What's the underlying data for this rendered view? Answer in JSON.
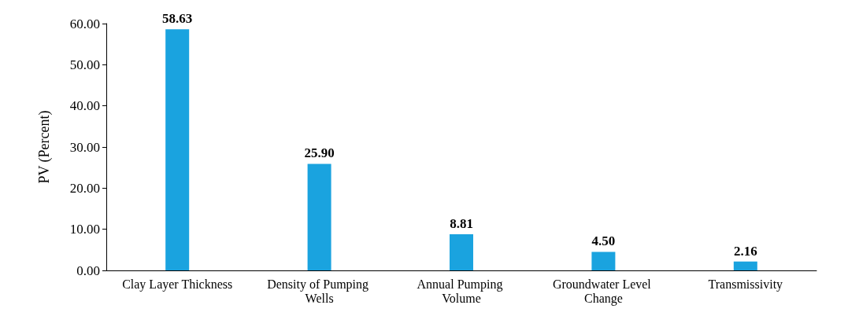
{
  "chart_data": {
    "type": "bar",
    "ylabel": "PV (Percent)",
    "categories": [
      "Clay Layer Thickness",
      "Density of Pumping Wells",
      "Annual Pumping Volume",
      "Groundwater Level Change",
      "Transmissivity"
    ],
    "values": [
      58.63,
      25.9,
      8.81,
      4.5,
      2.16
    ],
    "value_labels": [
      "58.63",
      "25.90",
      "8.81",
      "4.50",
      "2.16"
    ],
    "color": "#1aa3df",
    "ylim": [
      0,
      60
    ],
    "yticks": [
      {
        "value": 0,
        "label": "0.00"
      },
      {
        "value": 10,
        "label": "10.00"
      },
      {
        "value": 20,
        "label": "20.00"
      },
      {
        "value": 30,
        "label": "30.00"
      },
      {
        "value": 40,
        "label": "40.00"
      },
      {
        "value": 50,
        "label": "50.00"
      },
      {
        "value": 60,
        "label": "60.00"
      }
    ],
    "grid": false
  }
}
